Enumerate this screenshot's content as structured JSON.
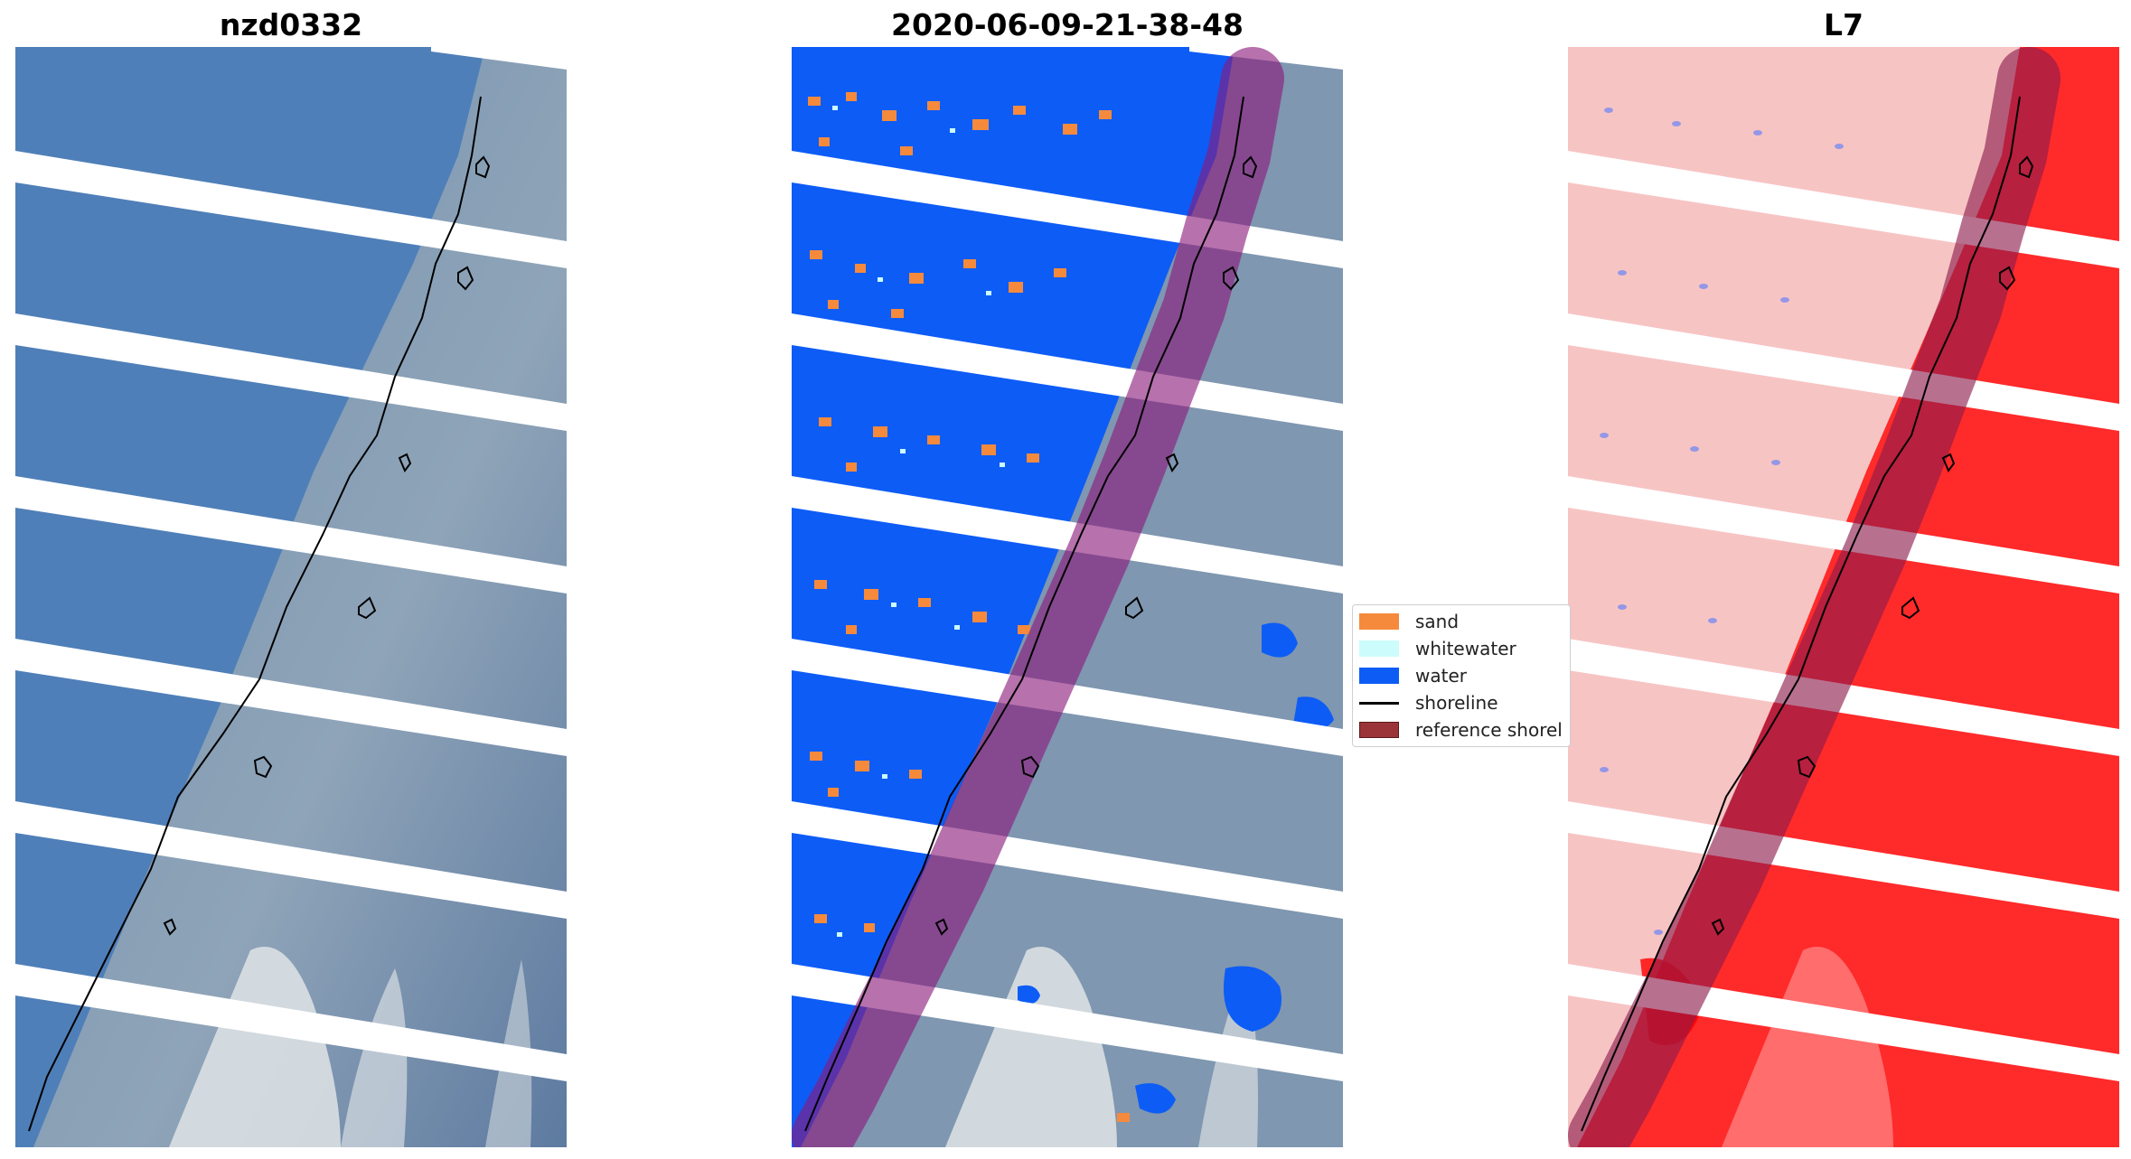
{
  "panels": [
    {
      "title": "nzd0332"
    },
    {
      "title": "2020-06-09-21-38-48"
    },
    {
      "title": "L7"
    }
  ],
  "legend": {
    "items": [
      {
        "label": "sand",
        "color": "#f58a3c",
        "kind": "patch"
      },
      {
        "label": "whitewater",
        "color": "#ccfcfc",
        "kind": "patch"
      },
      {
        "label": "water",
        "color": "#0d5cf6",
        "kind": "patch"
      },
      {
        "label": "shoreline",
        "color": "#000000",
        "kind": "line"
      },
      {
        "label": "reference shorel",
        "color": "#9a3438",
        "kind": "patch"
      }
    ]
  },
  "colors": {
    "ocean": "#4f7fb8",
    "land": "#7f97b0",
    "snow": "#dfe4e6",
    "classified_water": "#0d5cf6",
    "sand": "#f58a3c",
    "whitewater": "#ccfcfc",
    "reference_buffer": "#8b1a7a",
    "index_low": "#f7c4c4",
    "index_high": "#ff1a1a"
  }
}
